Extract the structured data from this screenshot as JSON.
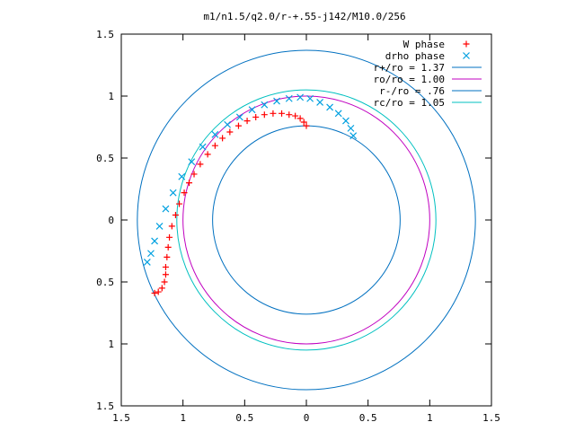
{
  "chart_data": {
    "type": "scatter",
    "title": "m1/n1.5/q2.0/r-+.55-j142/M10.0/256",
    "xlim": [
      -1.5,
      1.5
    ],
    "ylim": [
      -1.5,
      1.5
    ],
    "x_ticks": [
      {
        "value": -1.5,
        "label": "1.5"
      },
      {
        "value": -1.0,
        "label": "1"
      },
      {
        "value": -0.5,
        "label": "0.5"
      },
      {
        "value": 0.0,
        "label": "0"
      },
      {
        "value": 0.5,
        "label": "0.5"
      },
      {
        "value": 1.0,
        "label": "1"
      },
      {
        "value": 1.5,
        "label": "1.5"
      }
    ],
    "y_ticks": [
      {
        "value": -1.5,
        "label": "1.5"
      },
      {
        "value": -1.0,
        "label": "1"
      },
      {
        "value": -0.5,
        "label": "0.5"
      },
      {
        "value": 0.0,
        "label": "0"
      },
      {
        "value": 0.5,
        "label": "0.5"
      },
      {
        "value": 1.0,
        "label": "1"
      },
      {
        "value": 1.5,
        "label": "1.5"
      }
    ],
    "grid": false,
    "legend_position": "top-right",
    "series": [
      {
        "name": "W phase",
        "marker": "plus",
        "color": "#ff0000",
        "points": [
          [
            0.0,
            0.76
          ],
          [
            -0.02,
            0.79
          ],
          [
            -0.05,
            0.82
          ],
          [
            -0.09,
            0.84
          ],
          [
            -0.14,
            0.85
          ],
          [
            -0.2,
            0.86
          ],
          [
            -0.27,
            0.86
          ],
          [
            -0.34,
            0.85
          ],
          [
            -0.41,
            0.83
          ],
          [
            -0.48,
            0.8
          ],
          [
            -0.55,
            0.76
          ],
          [
            -0.62,
            0.71
          ],
          [
            -0.68,
            0.66
          ],
          [
            -0.74,
            0.6
          ],
          [
            -0.8,
            0.53
          ],
          [
            -0.86,
            0.45
          ],
          [
            -0.91,
            0.37
          ],
          [
            -0.95,
            0.3
          ],
          [
            -0.99,
            0.22
          ],
          [
            -1.03,
            0.13
          ],
          [
            -1.06,
            0.04
          ],
          [
            -1.09,
            -0.05
          ],
          [
            -1.11,
            -0.14
          ],
          [
            -1.12,
            -0.22
          ],
          [
            -1.13,
            -0.3
          ],
          [
            -1.14,
            -0.38
          ],
          [
            -1.14,
            -0.44
          ],
          [
            -1.15,
            -0.5
          ],
          [
            -1.17,
            -0.55
          ],
          [
            -1.2,
            -0.58
          ],
          [
            -1.23,
            -0.59
          ]
        ]
      },
      {
        "name": "drho phase",
        "marker": "cross",
        "color": "#00a0e0",
        "points": [
          [
            0.38,
            0.68
          ],
          [
            0.36,
            0.74
          ],
          [
            0.32,
            0.8
          ],
          [
            0.26,
            0.86
          ],
          [
            0.19,
            0.91
          ],
          [
            0.11,
            0.95
          ],
          [
            0.03,
            0.98
          ],
          [
            -0.05,
            0.99
          ],
          [
            -0.14,
            0.98
          ],
          [
            -0.24,
            0.96
          ],
          [
            -0.34,
            0.93
          ],
          [
            -0.44,
            0.89
          ],
          [
            -0.54,
            0.83
          ],
          [
            -0.64,
            0.77
          ],
          [
            -0.74,
            0.69
          ],
          [
            -0.84,
            0.59
          ],
          [
            -0.93,
            0.47
          ],
          [
            -1.01,
            0.35
          ],
          [
            -1.08,
            0.22
          ],
          [
            -1.14,
            0.09
          ],
          [
            -1.19,
            -0.05
          ],
          [
            -1.23,
            -0.17
          ],
          [
            -1.26,
            -0.27
          ],
          [
            -1.29,
            -0.34
          ]
        ]
      }
    ],
    "circles": [
      {
        "name": "r+/ro = 1.37",
        "radius": 1.37,
        "color": "#0070c0"
      },
      {
        "name": "ro/ro = 1.00",
        "radius": 1.0,
        "color": "#c000c0"
      },
      {
        "name": "r-/ro = .76",
        "radius": 0.76,
        "color": "#0070c0"
      },
      {
        "name": "rc/ro = 1.05",
        "radius": 1.05,
        "color": "#00c0c0"
      }
    ]
  }
}
